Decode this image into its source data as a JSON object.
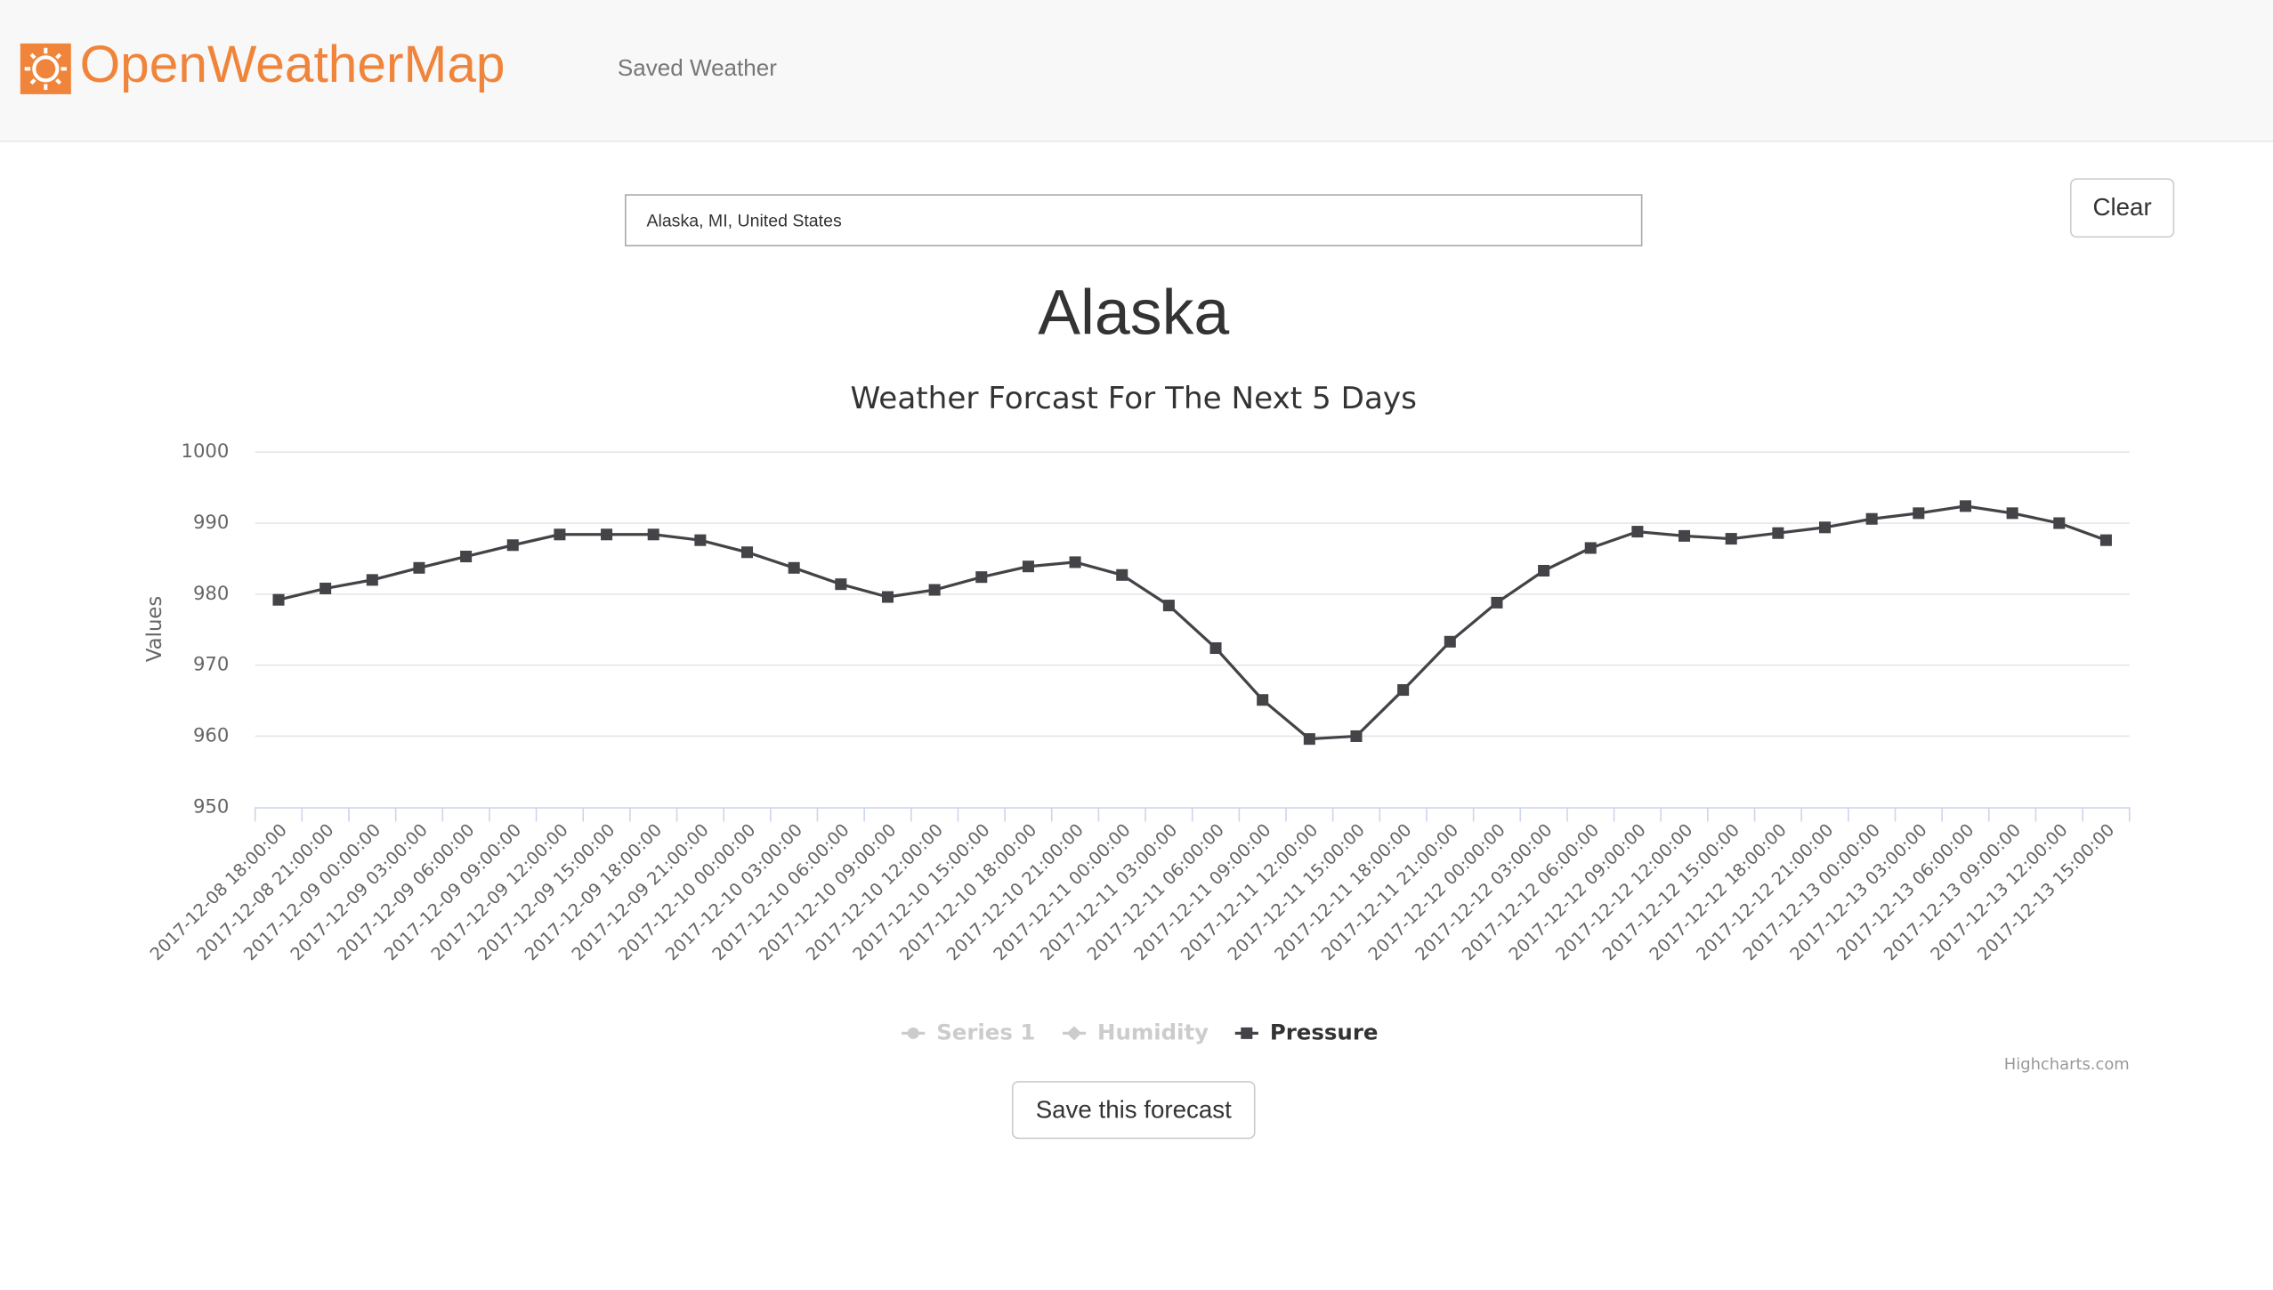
{
  "header": {
    "logo": "OpenWeatherMap",
    "nav": "Saved Weather"
  },
  "search": {
    "value": "Alaska, MI, United States",
    "clear_button": "Clear"
  },
  "city": "Alaska",
  "chart_data": {
    "type": "line",
    "title": "Weather Forcast For The Next 5 Days",
    "y_axis_label": "Values",
    "credits": "Highcharts.com",
    "categories": [
      "2017-12-08 18:00:00",
      "2017-12-08 21:00:00",
      "2017-12-09 00:00:00",
      "2017-12-09 03:00:00",
      "2017-12-09 06:00:00",
      "2017-12-09 09:00:00",
      "2017-12-09 12:00:00",
      "2017-12-09 15:00:00",
      "2017-12-09 18:00:00",
      "2017-12-09 21:00:00",
      "2017-12-10 00:00:00",
      "2017-12-10 03:00:00",
      "2017-12-10 06:00:00",
      "2017-12-10 09:00:00",
      "2017-12-10 12:00:00",
      "2017-12-10 15:00:00",
      "2017-12-10 18:00:00",
      "2017-12-10 21:00:00",
      "2017-12-11 00:00:00",
      "2017-12-11 03:00:00",
      "2017-12-11 06:00:00",
      "2017-12-11 09:00:00",
      "2017-12-11 12:00:00",
      "2017-12-11 15:00:00",
      "2017-12-11 18:00:00",
      "2017-12-11 21:00:00",
      "2017-12-12 00:00:00",
      "2017-12-12 03:00:00",
      "2017-12-12 06:00:00",
      "2017-12-12 09:00:00",
      "2017-12-12 12:00:00",
      "2017-12-12 15:00:00",
      "2017-12-12 18:00:00",
      "2017-12-12 21:00:00",
      "2017-12-13 00:00:00",
      "2017-12-13 03:00:00",
      "2017-12-13 06:00:00",
      "2017-12-13 09:00:00",
      "2017-12-13 12:00:00",
      "2017-12-13 15:00:00"
    ],
    "series": [
      {
        "name": "Series 1",
        "marker": "circle",
        "visible": false
      },
      {
        "name": "Humidity",
        "marker": "diamond",
        "visible": false
      },
      {
        "name": "Pressure",
        "marker": "square",
        "visible": true,
        "color": "#434348",
        "values": [
          979.2,
          980.8,
          982.0,
          983.7,
          985.3,
          986.9,
          988.4,
          988.4,
          988.4,
          987.6,
          985.9,
          983.7,
          981.4,
          979.6,
          980.6,
          982.4,
          983.9,
          984.5,
          982.7,
          978.4,
          972.4,
          965.1,
          959.6,
          960.0,
          966.5,
          973.3,
          978.8,
          983.3,
          986.5,
          988.8,
          988.2,
          987.8,
          988.6,
          989.4,
          990.6,
          991.4,
          992.4,
          991.4,
          990.0,
          987.6
        ]
      }
    ],
    "hidden_color": "#cccccc",
    "ylim": [
      950,
      1000
    ],
    "yticks": [
      950,
      960,
      970,
      980,
      990,
      1000
    ],
    "grid": true
  },
  "save_button": "Save this forecast"
}
